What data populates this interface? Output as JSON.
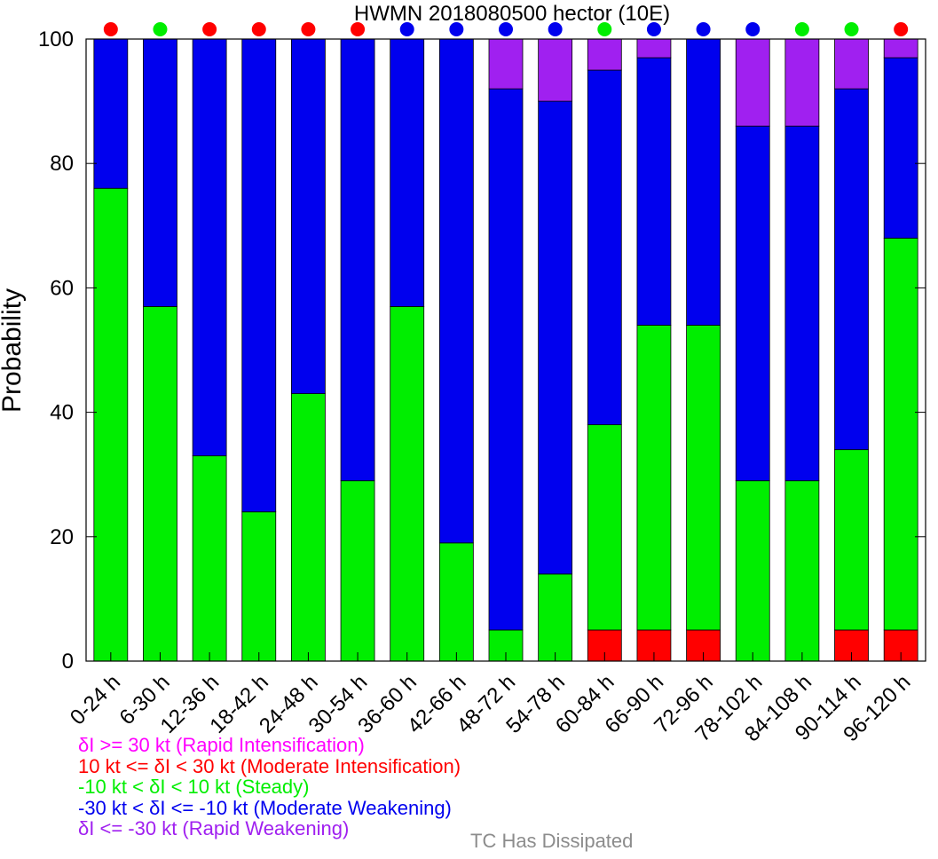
{
  "chart_data": {
    "type": "bar",
    "stacked": true,
    "title": "HWMN 2018080500 hector (10E)",
    "ylabel": "Probability",
    "xlabel": "",
    "ylim": [
      0,
      100
    ],
    "yticks": [
      0,
      20,
      40,
      60,
      80,
      100
    ],
    "categories": [
      "0-24 h",
      "6-30 h",
      "12-36 h",
      "18-42 h",
      "24-48 h",
      "30-54 h",
      "36-60 h",
      "42-66 h",
      "48-72 h",
      "54-78 h",
      "60-84 h",
      "66-90 h",
      "72-96 h",
      "78-102 h",
      "84-108 h",
      "90-114 h",
      "96-120 h"
    ],
    "series": [
      {
        "key": "mi",
        "color": "#ff0000",
        "values": [
          0,
          0,
          0,
          0,
          0,
          0,
          0,
          0,
          0,
          0,
          5,
          5,
          5,
          0,
          0,
          5,
          5
        ]
      },
      {
        "key": "st",
        "color": "#00ee00",
        "values": [
          76,
          57,
          33,
          24,
          43,
          29,
          57,
          19,
          5,
          14,
          33,
          49,
          49,
          29,
          29,
          29,
          63
        ]
      },
      {
        "key": "mw",
        "color": "#0000ee",
        "values": [
          24,
          43,
          67,
          76,
          57,
          71,
          43,
          81,
          87,
          76,
          57,
          43,
          46,
          57,
          57,
          58,
          29
        ]
      },
      {
        "key": "rw",
        "color": "#a020f0",
        "values": [
          0,
          0,
          0,
          0,
          0,
          0,
          0,
          0,
          8,
          10,
          5,
          3,
          0,
          14,
          14,
          8,
          3
        ]
      }
    ],
    "indicator_colors": [
      "#ff0000",
      "#00ee00",
      "#ff0000",
      "#ff0000",
      "#ff0000",
      "#ff0000",
      "#0000ee",
      "#0000ee",
      "#0000ee",
      "#0000ee",
      "#00ee00",
      "#0000ee",
      "#0000ee",
      "#0000ee",
      "#00ee00",
      "#00ee00",
      "#ff0000"
    ],
    "legend": [
      {
        "text": "δI >= 30 kt (Rapid Intensification)",
        "color": "#ff00ff"
      },
      {
        "text": "10 kt <= δI < 30 kt (Moderate Intensification)",
        "color": "#ff0000"
      },
      {
        "text": "-10 kt < δI < 10 kt (Steady)",
        "color": "#00ee00"
      },
      {
        "text": "-30 kt < δI <= -10 kt (Moderate Weakening)",
        "color": "#0000ee"
      },
      {
        "text": "δI <= -30 kt (Rapid Weakening)",
        "color": "#a020f0"
      }
    ],
    "legend_extra": {
      "text": "TC Has Dissipated",
      "color": "#8c8c8c"
    }
  }
}
